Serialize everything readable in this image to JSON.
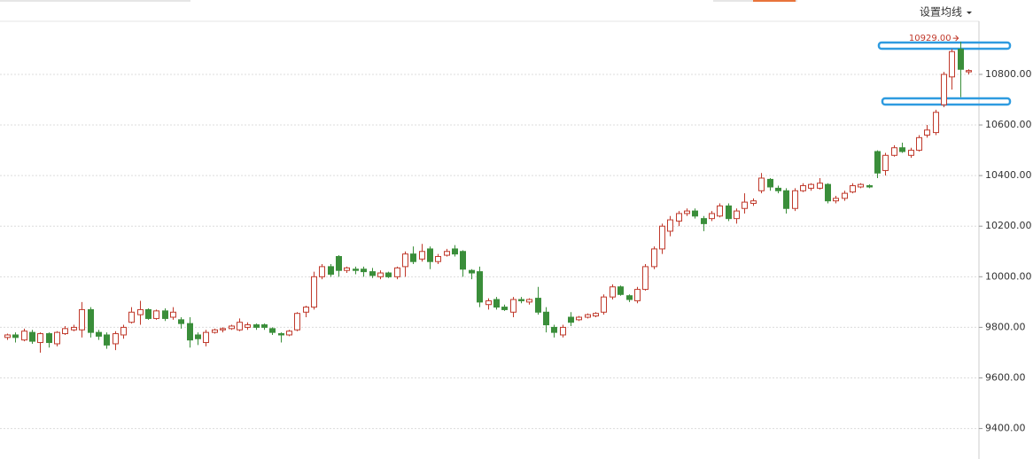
{
  "chart_data": {
    "type": "candlestick",
    "toolbar_button": "设置均线",
    "annotation": {
      "text": "10929.00",
      "value": 10929
    },
    "up_color": "#c0392b",
    "down_color": "#3a8e3a",
    "grid": true,
    "ylim": [
      9290,
      11010
    ],
    "yticks": [
      {
        "value": 9400,
        "label": "9400.00"
      },
      {
        "value": 9600,
        "label": "9600.00"
      },
      {
        "value": 9800,
        "label": "9800.00"
      },
      {
        "value": 10000,
        "label": "10000.00"
      },
      {
        "value": 10200,
        "label": "10200.00"
      },
      {
        "value": 10400,
        "label": "10400.00"
      },
      {
        "value": 10600,
        "label": "10600.00"
      },
      {
        "value": 10800,
        "label": "10800.00"
      }
    ],
    "open": [
      9760,
      9770,
      9750,
      9780,
      9740,
      9775,
      9735,
      9775,
      9790,
      9790,
      9870,
      9780,
      9770,
      9735,
      9770,
      9820,
      9850,
      9870,
      9835,
      9865,
      9840,
      9830,
      9815,
      9770,
      9740,
      9780,
      9790,
      9795,
      9790,
      9800,
      9810,
      9810,
      9795,
      9775,
      9770,
      9790,
      9860,
      9880,
      10000,
      10040,
      10080,
      10025,
      10030,
      10030,
      10020,
      10000,
      10015,
      10000,
      10040,
      10090,
      10070,
      10110,
      10060,
      10085,
      10110,
      10100,
      10025,
      10020,
      9890,
      9910,
      9880,
      9860,
      9910,
      9900,
      9915,
      9860,
      9800,
      9770,
      9840,
      9830,
      9840,
      9845,
      9860,
      9920,
      9960,
      9925,
      9905,
      9950,
      10040,
      10110,
      10180,
      10220,
      10250,
      10260,
      10230,
      10230,
      10240,
      10280,
      10230,
      10270,
      10290,
      10340,
      10385,
      10350,
      10340,
      10270,
      10340,
      10350,
      10350,
      10365,
      10300,
      10310,
      10335,
      10355,
      10360,
      10495,
      10420,
      10480,
      10510,
      10480,
      10500,
      10560,
      10570,
      10680,
      10790,
      10900,
      10810
    ],
    "high": [
      9775,
      9780,
      9795,
      9790,
      9780,
      9780,
      9785,
      9805,
      9810,
      9900,
      9880,
      9790,
      9780,
      9785,
      9810,
      9880,
      9905,
      9875,
      9870,
      9875,
      9880,
      9840,
      9840,
      9780,
      9790,
      9795,
      9800,
      9810,
      9835,
      9820,
      9815,
      9815,
      9800,
      9780,
      9790,
      9860,
      9885,
      10020,
      10050,
      10050,
      10085,
      10040,
      10040,
      10040,
      10035,
      10025,
      10020,
      10040,
      10100,
      10120,
      10130,
      10120,
      10090,
      10110,
      10125,
      10105,
      10030,
      10040,
      9915,
      9920,
      9890,
      9920,
      9920,
      9915,
      9960,
      9880,
      9810,
      9810,
      9860,
      9845,
      9855,
      9860,
      9930,
      9970,
      9965,
      9930,
      9960,
      10050,
      10120,
      10210,
      10240,
      10260,
      10270,
      10270,
      10240,
      10260,
      10290,
      10290,
      10270,
      10330,
      10310,
      10410,
      10390,
      10360,
      10350,
      10350,
      10370,
      10370,
      10390,
      10370,
      10320,
      10340,
      10370,
      10370,
      10365,
      10500,
      10490,
      10520,
      10530,
      10510,
      10560,
      10600,
      10660,
      10810,
      10900,
      10929,
      10820
    ],
    "low": [
      9750,
      9740,
      9745,
      9735,
      9700,
      9720,
      9725,
      9770,
      9785,
      9760,
      9760,
      9750,
      9715,
      9710,
      9755,
      9815,
      9810,
      9830,
      9830,
      9825,
      9830,
      9795,
      9720,
      9730,
      9725,
      9775,
      9780,
      9790,
      9785,
      9790,
      9790,
      9790,
      9770,
      9740,
      9765,
      9785,
      9840,
      9870,
      9990,
      10000,
      10000,
      10015,
      10010,
      10000,
      9995,
      9990,
      9995,
      9990,
      10000,
      10050,
      10060,
      10030,
      10050,
      10080,
      10080,
      10000,
      9990,
      9880,
      9870,
      9870,
      9865,
      9840,
      9895,
      9890,
      9850,
      9780,
      9760,
      9760,
      9805,
      9825,
      9835,
      9840,
      9850,
      9910,
      9925,
      9900,
      9895,
      9945,
      10030,
      10090,
      10160,
      10200,
      10240,
      10230,
      10180,
      10220,
      10235,
      10220,
      10210,
      10250,
      10280,
      10330,
      10340,
      10330,
      10250,
      10260,
      10335,
      10340,
      10345,
      10290,
      10290,
      10300,
      10330,
      10350,
      10350,
      10390,
      10400,
      10475,
      10490,
      10470,
      10495,
      10550,
      10560,
      10670,
      10740,
      10710,
      10800
    ],
    "close": [
      9770,
      9760,
      9785,
      9745,
      9775,
      9740,
      9780,
      9795,
      9800,
      9870,
      9780,
      9765,
      9730,
      9775,
      9800,
      9860,
      9870,
      9835,
      9865,
      9835,
      9860,
      9815,
      9750,
      9755,
      9780,
      9790,
      9795,
      9805,
      9820,
      9810,
      9800,
      9800,
      9780,
      9770,
      9785,
      9855,
      9880,
      10000,
      10040,
      10010,
      10025,
      10035,
      10025,
      10020,
      10005,
      10015,
      10000,
      10035,
      10090,
      10060,
      10100,
      10060,
      10080,
      10100,
      10090,
      10030,
      10015,
      9900,
      9905,
      9880,
      9870,
      9910,
      9905,
      9910,
      9860,
      9810,
      9780,
      9800,
      9820,
      9840,
      9850,
      9855,
      9920,
      9960,
      9930,
      9910,
      9950,
      10040,
      10110,
      10200,
      10225,
      10250,
      10260,
      10240,
      10210,
      10250,
      10280,
      10230,
      10260,
      10295,
      10300,
      10390,
      10355,
      10340,
      10270,
      10340,
      10360,
      10365,
      10370,
      10300,
      10310,
      10330,
      10360,
      10365,
      10355,
      10410,
      10480,
      10510,
      10495,
      10500,
      10550,
      10580,
      10650,
      10800,
      10890,
      10820,
      10815
    ]
  }
}
